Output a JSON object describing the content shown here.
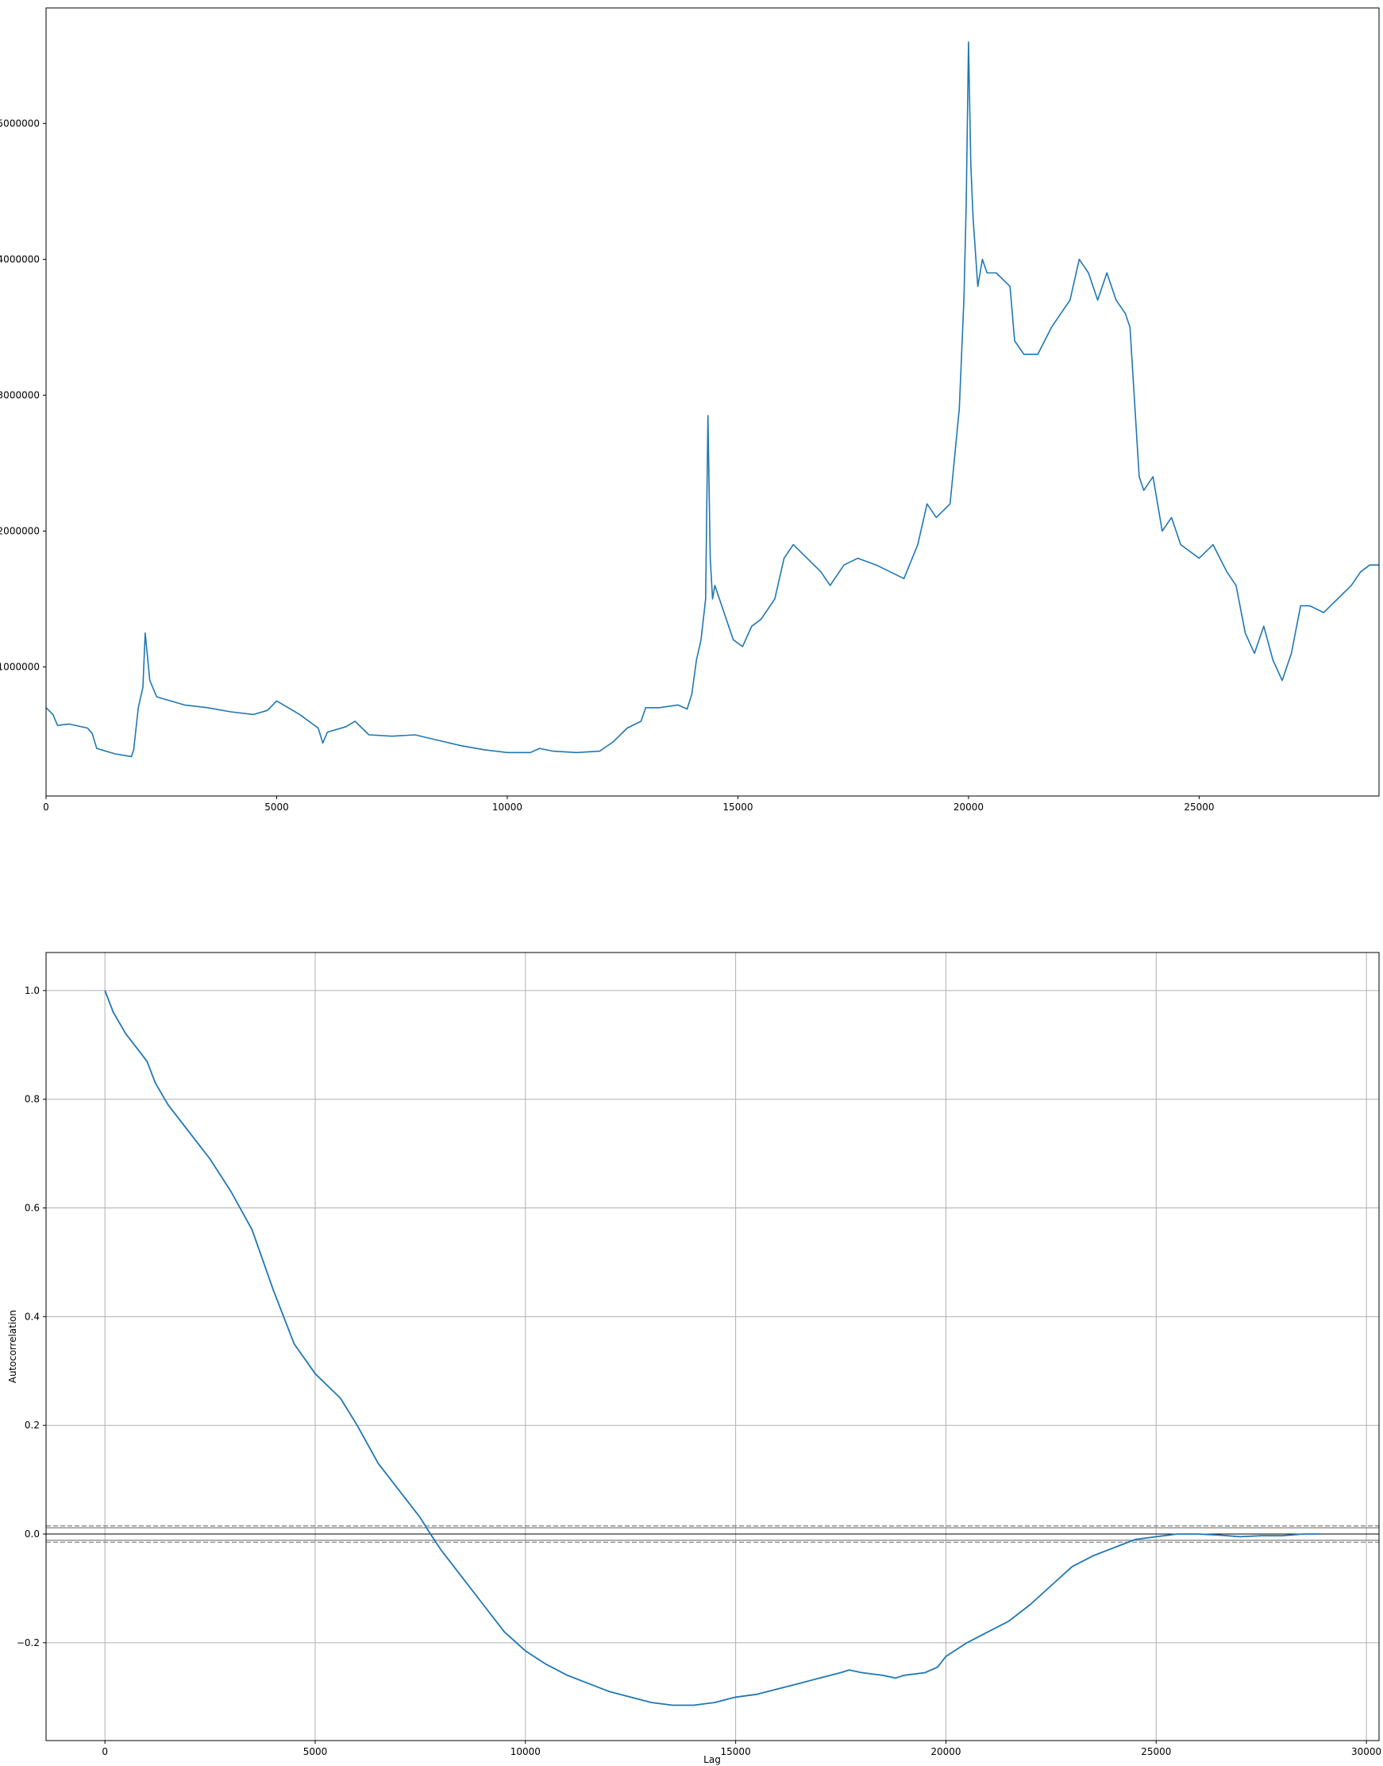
{
  "chart_data": [
    {
      "type": "line",
      "title": "",
      "xlabel": "",
      "ylabel": "",
      "xlim": [
        0,
        28900
      ],
      "ylim": [
        50000,
        5850000
      ],
      "grid": false,
      "x_ticks": [
        0,
        5000,
        10000,
        15000,
        20000,
        25000
      ],
      "x_tick_labels": [
        "0",
        "5000",
        "10000",
        "15000",
        "20000",
        "25000"
      ],
      "y_ticks": [
        1000000,
        2000000,
        3000000,
        4000000,
        5000000
      ],
      "y_tick_labels": [
        "1000000",
        "2000000",
        "3000000",
        "4000000",
        "5000000"
      ],
      "line_color": "#1f77b4",
      "series": [
        {
          "x": [
            0,
            150,
            250,
            500,
            900,
            1000,
            1100,
            1500,
            1850,
            1900,
            2000,
            2100,
            2150,
            2250,
            2400,
            2600,
            3000,
            3500,
            4000,
            4500,
            4800,
            5000,
            5500,
            5900,
            6000,
            6100,
            6500,
            6700,
            7000,
            7500,
            8000,
            8500,
            9000,
            9500,
            10000,
            10500,
            10700,
            11000,
            11500,
            12000,
            12300,
            12600,
            12900,
            13000,
            13300,
            13700,
            13900,
            14000,
            14100,
            14200,
            14300,
            14350,
            14400,
            14450,
            14500,
            14700,
            14900,
            15100,
            15300,
            15500,
            15800,
            16000,
            16200,
            16500,
            16800,
            17000,
            17300,
            17600,
            18000,
            18300,
            18600,
            18900,
            19100,
            19300,
            19600,
            19800,
            19900,
            19950,
            20000,
            20050,
            20100,
            20200,
            20300,
            20400,
            20600,
            20900,
            21000,
            21200,
            21500,
            21800,
            22000,
            22200,
            22400,
            22600,
            22800,
            23000,
            23200,
            23400,
            23500,
            23700,
            23800,
            24000,
            24200,
            24400,
            24600,
            24800,
            25000,
            25300,
            25600,
            25800,
            26000,
            26200,
            26400,
            26600,
            26800,
            27000,
            27200,
            27400,
            27700,
            28000,
            28300,
            28500,
            28700,
            28900
          ],
          "y": [
            700000,
            650000,
            570000,
            580000,
            550000,
            510000,
            400000,
            360000,
            340000,
            390000,
            700000,
            850000,
            1250000,
            900000,
            780000,
            760000,
            720000,
            700000,
            670000,
            650000,
            680000,
            750000,
            650000,
            550000,
            440000,
            520000,
            560000,
            600000,
            500000,
            490000,
            500000,
            460000,
            420000,
            390000,
            370000,
            370000,
            400000,
            380000,
            370000,
            380000,
            450000,
            550000,
            600000,
            700000,
            700000,
            720000,
            690000,
            800000,
            1050000,
            1200000,
            1500000,
            2850000,
            1800000,
            1500000,
            1600000,
            1400000,
            1200000,
            1150000,
            1300000,
            1350000,
            1500000,
            1800000,
            1900000,
            1800000,
            1700000,
            1600000,
            1750000,
            1800000,
            1750000,
            1700000,
            1650000,
            1900000,
            2200000,
            2100000,
            2200000,
            2900000,
            3700000,
            4400000,
            5600000,
            4700000,
            4300000,
            3800000,
            4000000,
            3900000,
            3900000,
            3800000,
            3400000,
            3300000,
            3300000,
            3500000,
            3600000,
            3700000,
            4000000,
            3900000,
            3700000,
            3900000,
            3700000,
            3600000,
            3500000,
            2400000,
            2300000,
            2400000,
            2000000,
            2100000,
            1900000,
            1850000,
            1800000,
            1900000,
            1700000,
            1600000,
            1250000,
            1100000,
            1300000,
            1050000,
            900000,
            1100000,
            1450000,
            1450000,
            1400000,
            1500000,
            1600000,
            1700000,
            1750000,
            1750000
          ]
        }
      ]
    },
    {
      "type": "line",
      "title": "",
      "xlabel": "Lag",
      "ylabel": "Autocorrelation",
      "xlim": [
        -1400,
        30300
      ],
      "ylim": [
        -0.38,
        1.07
      ],
      "grid": true,
      "x_ticks": [
        0,
        5000,
        10000,
        15000,
        20000,
        25000,
        30000
      ],
      "x_tick_labels": [
        "0",
        "5000",
        "10000",
        "15000",
        "20000",
        "25000",
        "30000"
      ],
      "y_ticks": [
        -0.2,
        0.0,
        0.2,
        0.4,
        0.6,
        0.8,
        1.0
      ],
      "y_tick_labels": [
        "−0.2",
        "0.0",
        "0.2",
        "0.4",
        "0.6",
        "0.8",
        "1.0"
      ],
      "line_color": "#1f77b4",
      "band_color": "#808080",
      "confidence_bands": [
        0.0115,
        0.015,
        -0.0115,
        -0.015
      ],
      "series": [
        {
          "x": [
            0,
            200,
            500,
            800,
            1000,
            1200,
            1500,
            2000,
            2500,
            3000,
            3500,
            4000,
            4500,
            5000,
            5200,
            5600,
            6000,
            6500,
            7000,
            7500,
            7700,
            8000,
            8500,
            9000,
            9500,
            10000,
            10500,
            11000,
            11500,
            12000,
            12500,
            13000,
            13500,
            14000,
            14500,
            15000,
            15500,
            16000,
            16500,
            17000,
            17500,
            17700,
            18000,
            18500,
            18800,
            19000,
            19500,
            19800,
            20000,
            20500,
            21000,
            21500,
            22000,
            22500,
            23000,
            23500,
            24000,
            24500,
            25000,
            25500,
            26000,
            26500,
            27000,
            27500,
            28000,
            28500,
            28900
          ],
          "y": [
            1.0,
            0.96,
            0.92,
            0.89,
            0.87,
            0.83,
            0.79,
            0.74,
            0.69,
            0.63,
            0.56,
            0.45,
            0.35,
            0.295,
            0.28,
            0.25,
            0.2,
            0.13,
            0.08,
            0.03,
            0.005,
            -0.03,
            -0.08,
            -0.13,
            -0.18,
            -0.215,
            -0.24,
            -0.26,
            -0.275,
            -0.29,
            -0.3,
            -0.31,
            -0.315,
            -0.315,
            -0.31,
            -0.3,
            -0.295,
            -0.285,
            -0.275,
            -0.265,
            -0.255,
            -0.25,
            -0.255,
            -0.26,
            -0.265,
            -0.26,
            -0.255,
            -0.245,
            -0.225,
            -0.2,
            -0.18,
            -0.16,
            -0.13,
            -0.095,
            -0.06,
            -0.04,
            -0.025,
            -0.01,
            -0.005,
            0.0,
            0.0,
            -0.002,
            -0.005,
            -0.003,
            -0.003,
            0.0,
            0.0
          ]
        }
      ]
    }
  ]
}
